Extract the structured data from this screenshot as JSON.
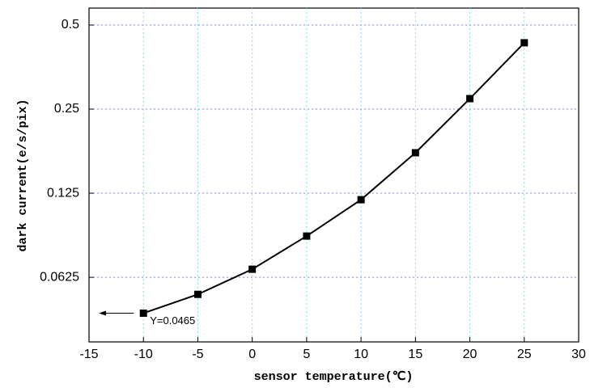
{
  "chart_data": {
    "type": "line",
    "xlabel": "sensor temperature(℃)",
    "ylabel": "dark current(e/s/pix)",
    "x": [
      -10,
      -5,
      0,
      5,
      10,
      15,
      20,
      25
    ],
    "series": [
      {
        "color": "#000000",
        "values": [
          0.0465,
          0.0543,
          0.0668,
          0.0878,
          0.1185,
          0.1745,
          0.2726,
          0.432
        ]
      }
    ],
    "annotation": "Y=0.0465",
    "xlim": [
      -15,
      30
    ],
    "xticks": [
      -15,
      -10,
      -5,
      0,
      5,
      10,
      15,
      20,
      25,
      30
    ],
    "ylim": [
      0.0367,
      0.575
    ],
    "yticks": [
      0.0625,
      0.125,
      0.25,
      0.5
    ],
    "ylog": true,
    "ylog_base": 2,
    "grid": true
  }
}
